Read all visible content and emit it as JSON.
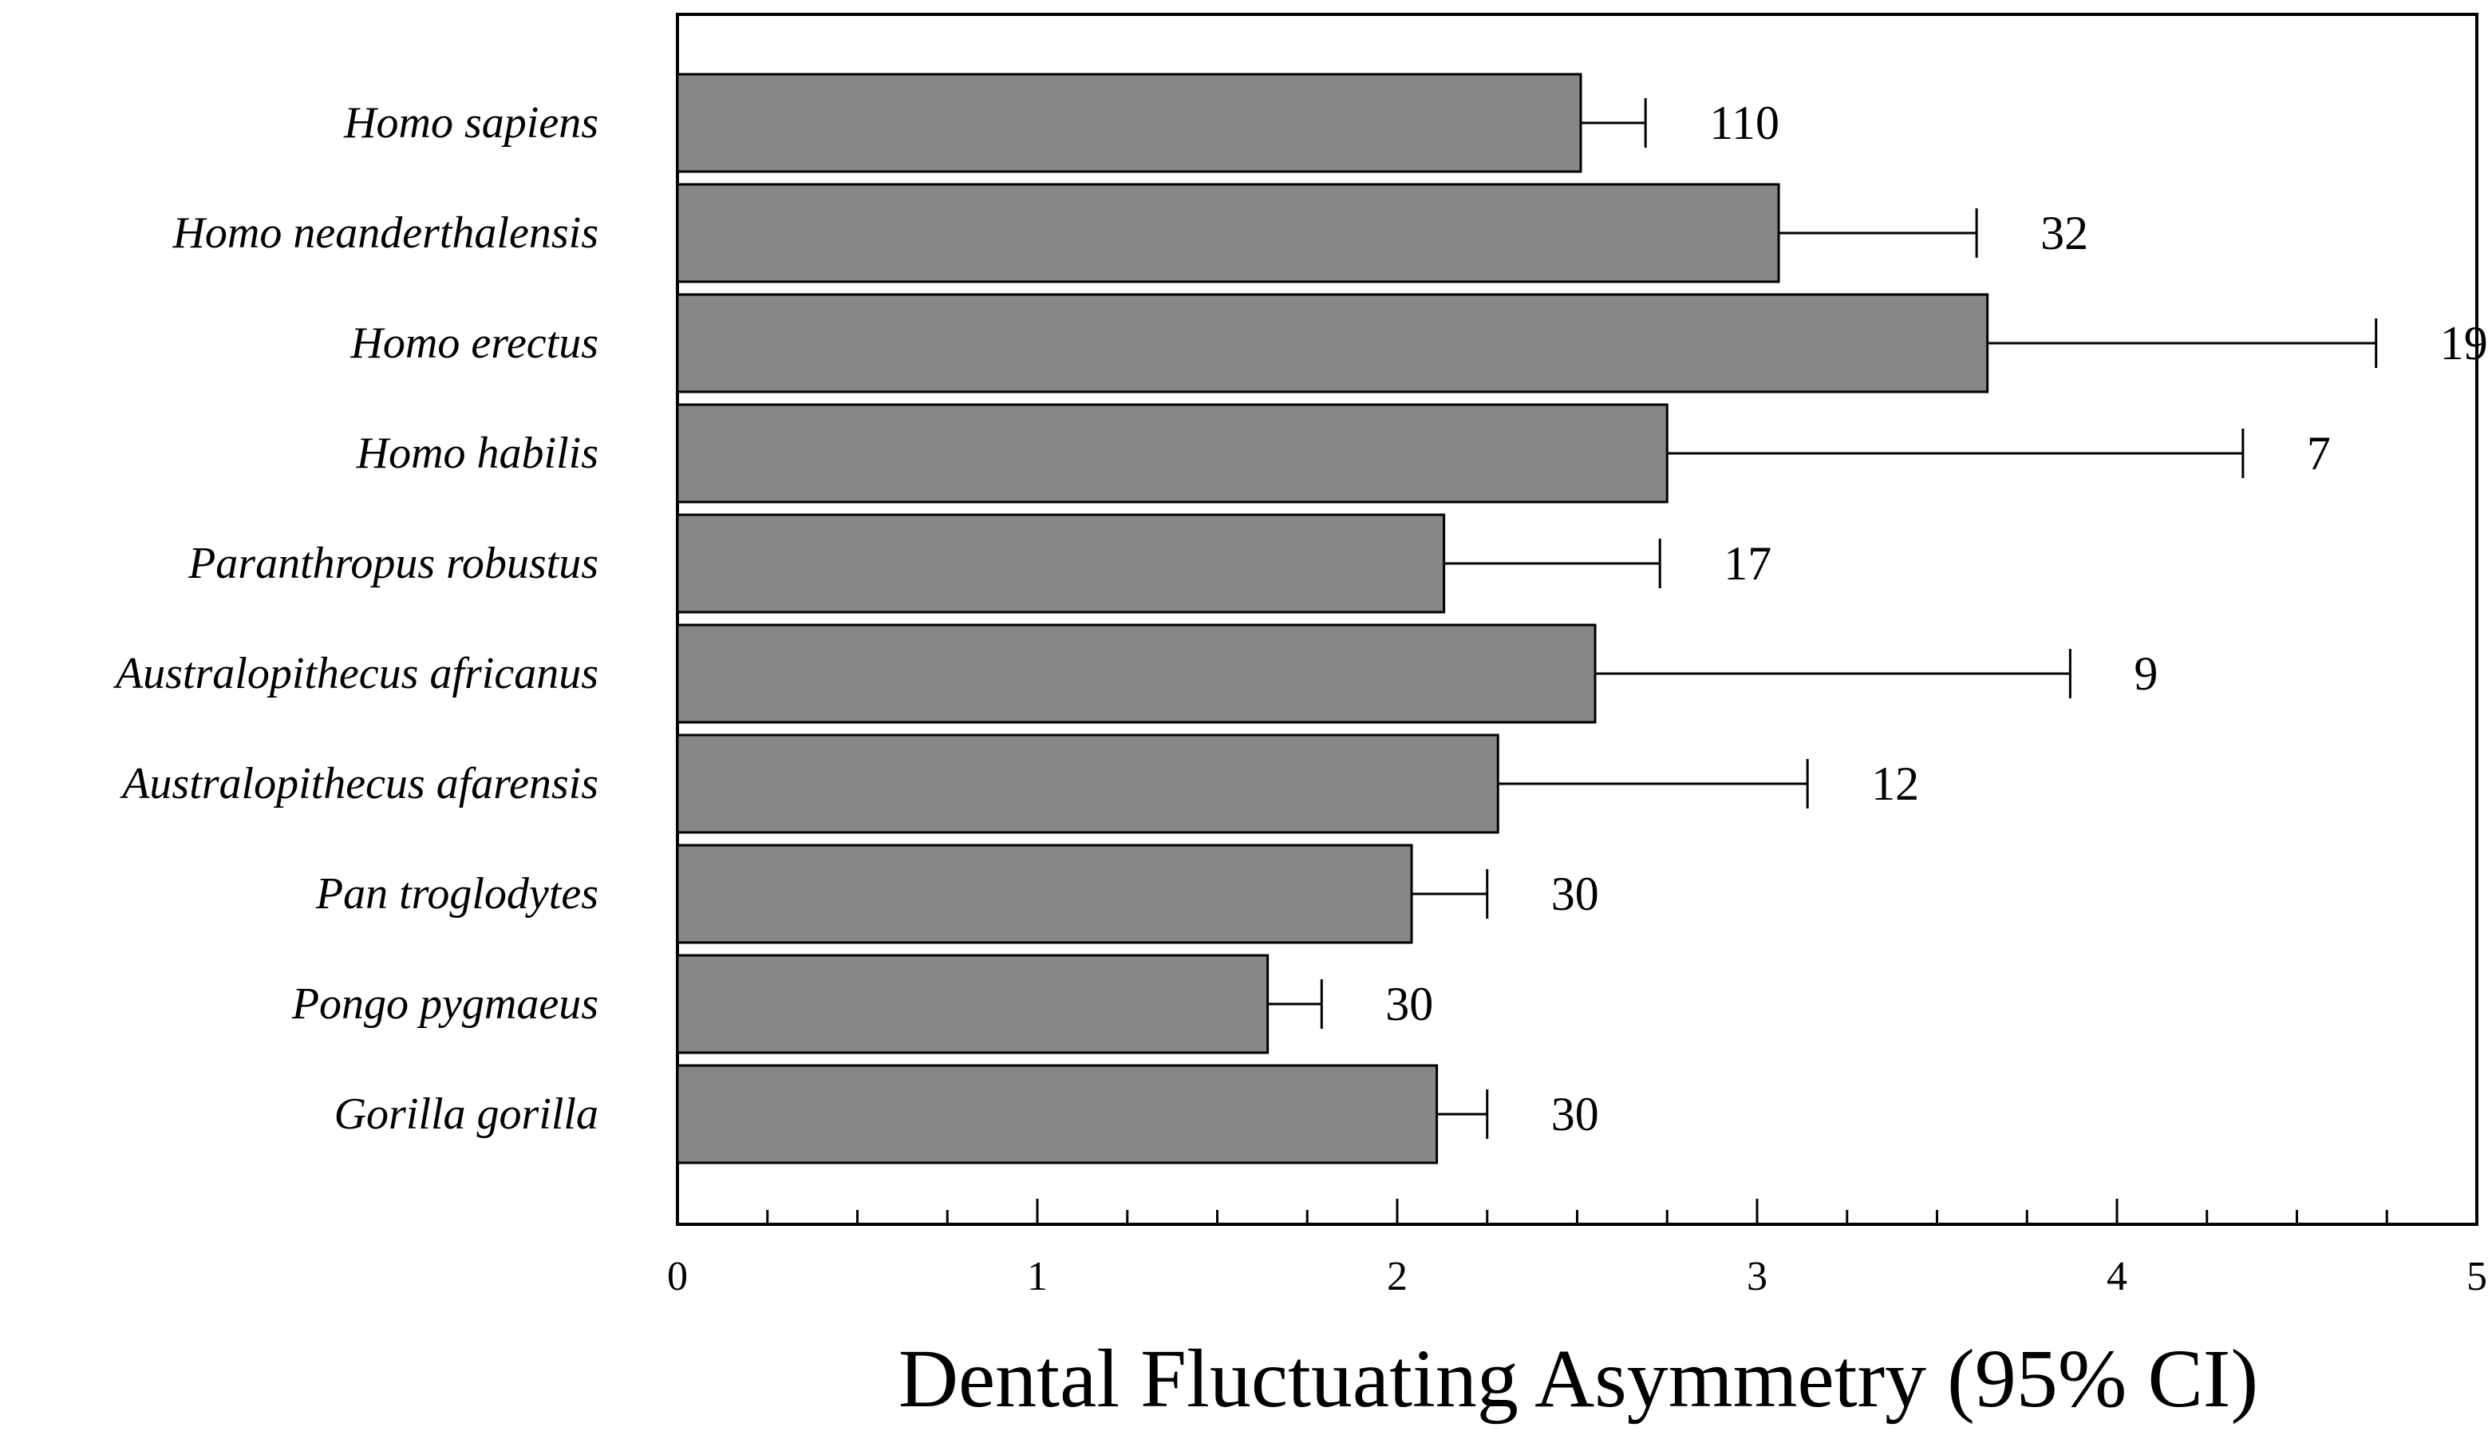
{
  "chart_data": {
    "type": "bar",
    "orientation": "horizontal",
    "categories": [
      "Homo sapiens",
      "Homo neanderthalensis",
      "Homo erectus",
      "Homo habilis",
      "Paranthropus robustus",
      "Australopithecus africanus",
      "Australopithecus afarensis",
      "Pan troglodytes",
      "Pongo pygmaeus",
      "Gorilla gorilla"
    ],
    "values": [
      2.51,
      3.06,
      3.64,
      2.75,
      2.13,
      2.55,
      2.28,
      2.04,
      1.64,
      2.11
    ],
    "ci_upper": [
      2.69,
      3.61,
      4.72,
      4.35,
      2.73,
      3.87,
      3.14,
      2.25,
      1.79,
      2.25
    ],
    "sample_sizes": [
      "110",
      "32",
      "19",
      "7",
      "17",
      "9",
      "12",
      "30",
      "30",
      "30"
    ],
    "xlabel": "Dental Fluctuating Asymmetry (95% CI)",
    "ylabel": "",
    "xlim": [
      0,
      5
    ],
    "xticks": [
      "0",
      "1",
      "2",
      "3",
      "4",
      "5"
    ],
    "minor_tick_step": 0.25,
    "grid": false,
    "legend": "none",
    "bar_color": "#878787",
    "bar_edge_color": "#000000"
  }
}
